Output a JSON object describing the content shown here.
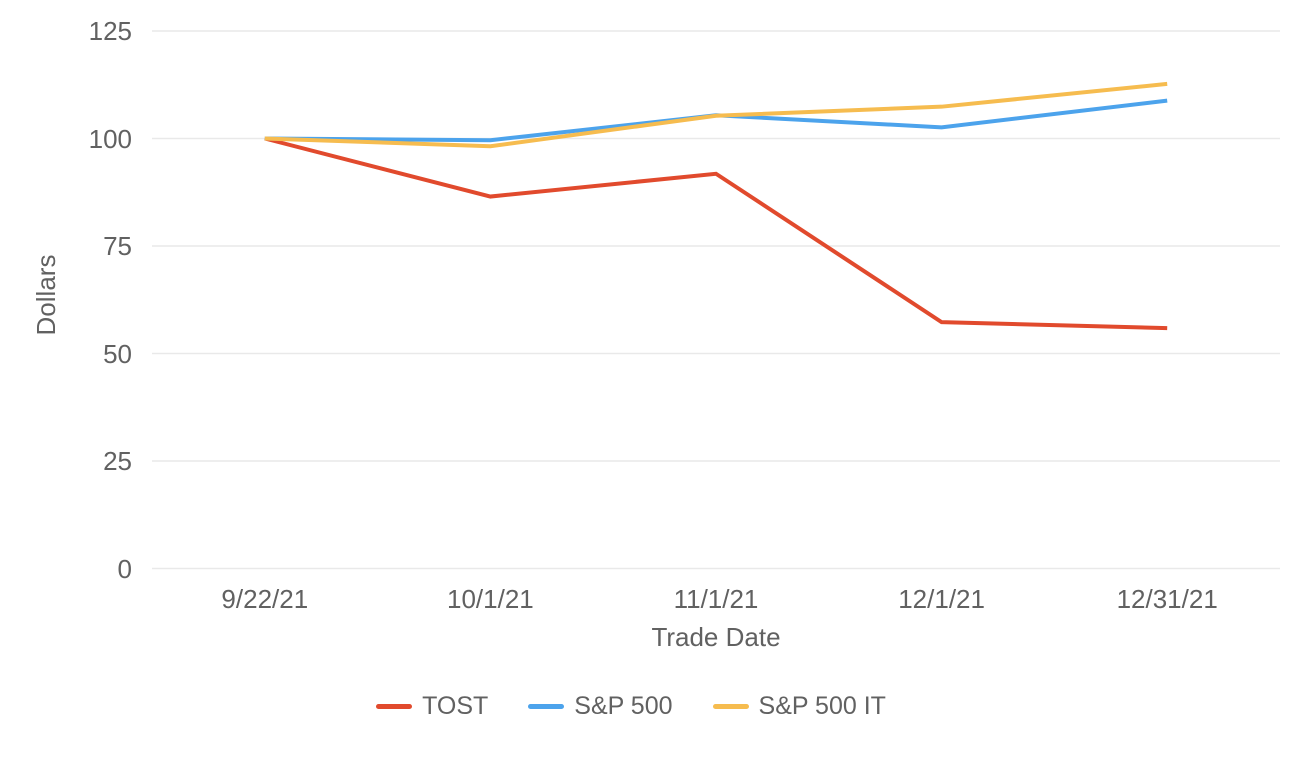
{
  "chart_data": {
    "type": "line",
    "title": "",
    "xlabel": "Trade Date",
    "ylabel": "Dollars",
    "categories": [
      "9/22/21",
      "10/1/21",
      "11/1/21",
      "12/1/21",
      "12/31/21"
    ],
    "series": [
      {
        "name": "TOST",
        "color": "#E14A2D",
        "values": [
          100,
          86.5,
          91.8,
          57.3,
          55.9
        ]
      },
      {
        "name": "S&P 500",
        "color": "#4CA3EC",
        "values": [
          100,
          99.6,
          105.4,
          102.6,
          108.8
        ]
      },
      {
        "name": "S&P 500 IT",
        "color": "#F6BC4F",
        "values": [
          100,
          98.2,
          105.3,
          107.4,
          112.7
        ]
      }
    ],
    "ylim": [
      0,
      125
    ],
    "yticks": [
      0,
      25,
      50,
      75,
      100,
      125
    ],
    "grid": "horizontal-only",
    "legend_position": "bottom",
    "background_color": "#FFFFFF",
    "grid_color": "#E9E9E9",
    "text_color": "#616161",
    "line_width": 4
  }
}
